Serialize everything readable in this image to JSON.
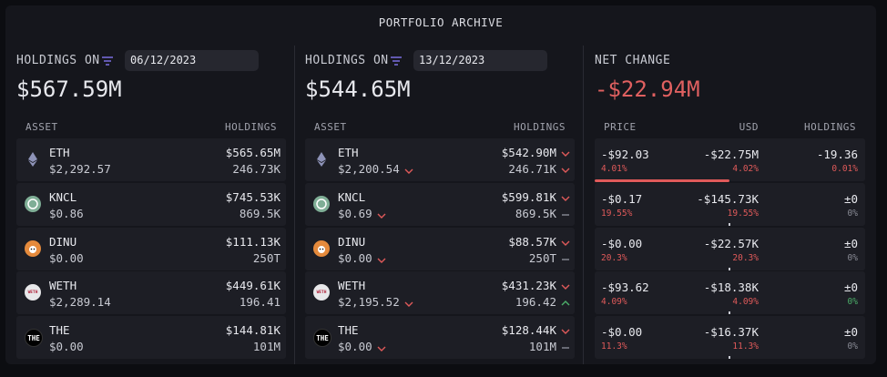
{
  "header": {
    "title": "PORTFOLIO ARCHIVE"
  },
  "panels": [
    {
      "label": "HOLDINGS ON",
      "date": "06/12/2023",
      "total": "$567.59M",
      "columns": [
        "ASSET",
        "HOLDINGS"
      ],
      "rows": [
        {
          "asset": "ETH",
          "price": "$2,292.57",
          "usd": "$565.65M",
          "amount": "246.73K"
        },
        {
          "asset": "KNCL",
          "price": "$0.86",
          "usd": "$745.53K",
          "amount": "869.5K"
        },
        {
          "asset": "DINU",
          "price": "$0.00",
          "usd": "$111.13K",
          "amount": "250T"
        },
        {
          "asset": "WETH",
          "price": "$2,289.14",
          "usd": "$449.61K",
          "amount": "196.41"
        },
        {
          "asset": "THE",
          "price": "$0.00",
          "usd": "$144.81K",
          "amount": "101M"
        }
      ]
    },
    {
      "label": "HOLDINGS ON",
      "date": "13/12/2023",
      "total": "$544.65M",
      "columns": [
        "ASSET",
        "HOLDINGS"
      ],
      "rows": [
        {
          "asset": "ETH",
          "price": "$2,200.54",
          "usd": "$542.90M",
          "amount": "246.71K",
          "price_trend": "down",
          "usd_trend": "down",
          "amount_trend": "down"
        },
        {
          "asset": "KNCL",
          "price": "$0.69",
          "usd": "$599.81K",
          "amount": "869.5K",
          "price_trend": "down",
          "usd_trend": "down",
          "amount_trend": "flat"
        },
        {
          "asset": "DINU",
          "price": "$0.00",
          "usd": "$88.57K",
          "amount": "250T",
          "price_trend": "down",
          "usd_trend": "down",
          "amount_trend": "flat"
        },
        {
          "asset": "WETH",
          "price": "$2,195.52",
          "usd": "$431.23K",
          "amount": "196.42",
          "price_trend": "down",
          "usd_trend": "down",
          "amount_trend": "up"
        },
        {
          "asset": "THE",
          "price": "$0.00",
          "usd": "$128.44K",
          "amount": "101M",
          "price_trend": "down",
          "usd_trend": "down",
          "amount_trend": "flat"
        }
      ]
    }
  ],
  "net_change": {
    "label": "NET CHANGE",
    "total": "-$22.94M",
    "columns": [
      "PRICE",
      "USD",
      "HOLDINGS"
    ],
    "rows": [
      {
        "price": "-$92.03",
        "price_pct": "4.01%",
        "usd": "-$22.75M",
        "usd_pct": "4.02%",
        "holdings": "-19.36",
        "holdings_pct": "0.01%",
        "holdings_pct_color": "#e05a5a"
      },
      {
        "price": "-$0.17",
        "price_pct": "19.55%",
        "usd": "-$145.73K",
        "usd_pct": "19.55%",
        "holdings": "±0",
        "holdings_pct": "0%",
        "holdings_pct_color": "#8a8c96"
      },
      {
        "price": "-$0.00",
        "price_pct": "20.3%",
        "usd": "-$22.57K",
        "usd_pct": "20.3%",
        "holdings": "±0",
        "holdings_pct": "0%",
        "holdings_pct_color": "#8a8c96"
      },
      {
        "price": "-$93.62",
        "price_pct": "4.09%",
        "usd": "-$18.38K",
        "usd_pct": "4.09%",
        "holdings": "±0",
        "holdings_pct": "0%",
        "holdings_pct_color": "#4caf6a"
      },
      {
        "price": "-$0.00",
        "price_pct": "11.3%",
        "usd": "-$16.37K",
        "usd_pct": "11.3%",
        "holdings": "±0",
        "holdings_pct": "0%",
        "holdings_pct_color": "#8a8c96"
      }
    ]
  }
}
